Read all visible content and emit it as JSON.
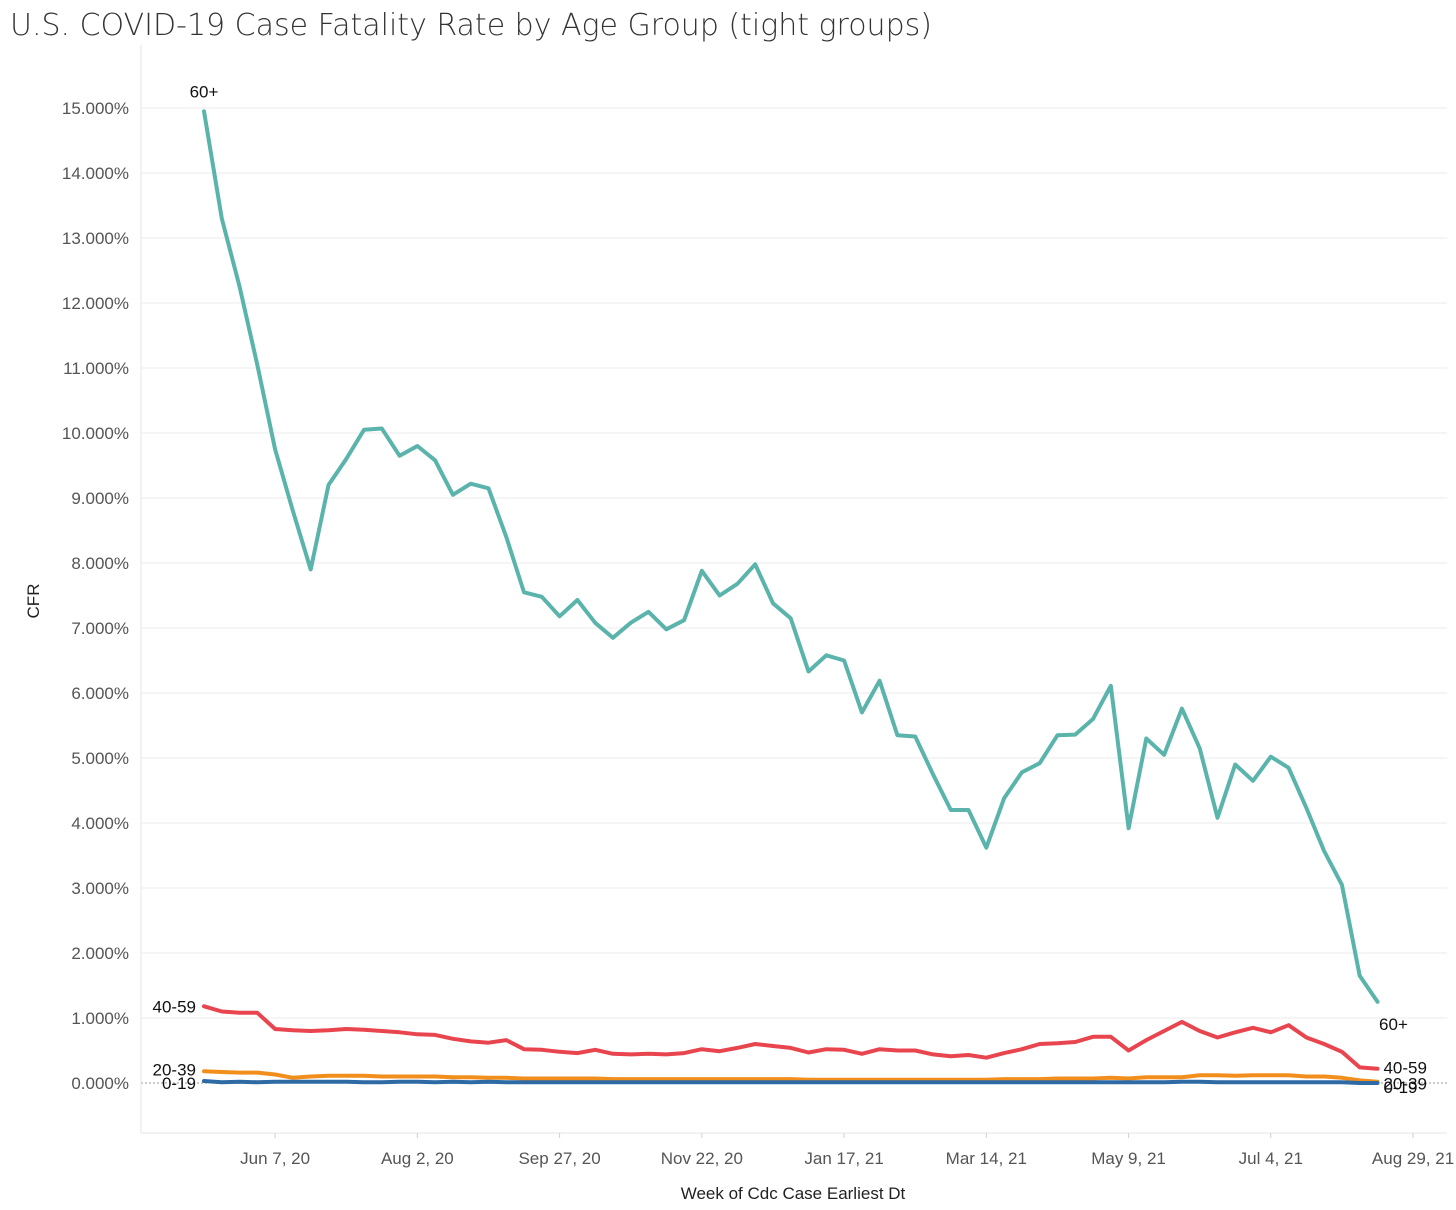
{
  "chart_data": {
    "type": "line",
    "title": "U.S. COVID-19 Case Fatality Rate by Age Group (tight groups)",
    "xlabel": "Week of Cdc Case Earliest Dt",
    "ylabel": "CFR",
    "ylim": [
      -0.007,
      0.0155
    ],
    "yticks": [
      0,
      0.01,
      0.02,
      0.03,
      0.04,
      0.05,
      0.06,
      0.07,
      0.08,
      0.09,
      0.1,
      0.11,
      0.12,
      0.13,
      0.14,
      0.15
    ],
    "ytick_labels": [
      "0.000%",
      "1.000%",
      "2.000%",
      "3.000%",
      "4.000%",
      "5.000%",
      "6.000%",
      "7.000%",
      "8.000%",
      "9.000%",
      "10.000%",
      "11.000%",
      "12.000%",
      "13.000%",
      "14.000%",
      "15.000%"
    ],
    "xlim": [
      -3.5,
      70
    ],
    "xticks": [
      4,
      12,
      20,
      28,
      36,
      44,
      52,
      60,
      68
    ],
    "xtick_labels": [
      "Jun 7, 20",
      "Aug 2, 20",
      "Sep 27, 20",
      "Nov 22, 20",
      "Jan 17, 21",
      "Mar 14, 21",
      "May 9, 21",
      "Jul 4, 21",
      "Aug 29, 21"
    ],
    "grid": true,
    "series": [
      {
        "name": "60+",
        "color": "#5ab4ac",
        "start_label": "60+",
        "end_label": "60+",
        "values": [
          0.1495,
          0.133,
          0.1225,
          0.1105,
          0.0975,
          0.088,
          0.079,
          0.092,
          0.096,
          0.1005,
          0.1007,
          0.0965,
          0.098,
          0.0958,
          0.0905,
          0.0922,
          0.0915,
          0.084,
          0.0755,
          0.0748,
          0.0718,
          0.0743,
          0.0708,
          0.0685,
          0.0708,
          0.0725,
          0.0698,
          0.0712,
          0.0788,
          0.075,
          0.0768,
          0.0798,
          0.0738,
          0.0715,
          0.0633,
          0.0658,
          0.065,
          0.057,
          0.0619,
          0.0535,
          0.0533,
          0.0475,
          0.042,
          0.042,
          0.0362,
          0.0438,
          0.0478,
          0.0492,
          0.0535,
          0.0536,
          0.056,
          0.0611,
          0.0392,
          0.053,
          0.0505,
          0.0576,
          0.0515,
          0.0408,
          0.049,
          0.0465,
          0.0502,
          0.0485,
          0.0423,
          0.0357,
          0.0305,
          0.0165,
          0.0125
        ]
      },
      {
        "name": "40-59",
        "color": "#e8454f",
        "start_label": "40-59",
        "end_label": "40-59",
        "values": [
          0.0118,
          0.011,
          0.0108,
          0.0108,
          0.0083,
          0.0081,
          0.008,
          0.0081,
          0.0083,
          0.0082,
          0.008,
          0.0078,
          0.0075,
          0.0074,
          0.0068,
          0.0064,
          0.0062,
          0.0066,
          0.0052,
          0.0051,
          0.0048,
          0.0046,
          0.0051,
          0.0045,
          0.0044,
          0.0045,
          0.0044,
          0.0046,
          0.0052,
          0.0049,
          0.0054,
          0.006,
          0.0057,
          0.0054,
          0.0047,
          0.0052,
          0.0051,
          0.0045,
          0.0052,
          0.005,
          0.005,
          0.0044,
          0.0041,
          0.0043,
          0.0039,
          0.0046,
          0.0052,
          0.006,
          0.0061,
          0.0063,
          0.0071,
          0.0071,
          0.005,
          0.0066,
          0.008,
          0.0094,
          0.008,
          0.007,
          0.0078,
          0.0085,
          0.0078,
          0.0089,
          0.007,
          0.006,
          0.0048,
          0.0024,
          0.0022
        ]
      },
      {
        "name": "20-39",
        "color": "#f28e1c",
        "start_label": "20-39",
        "end_label": "20-39",
        "values": [
          0.0018,
          0.0017,
          0.0016,
          0.0016,
          0.0013,
          0.0008,
          0.001,
          0.0011,
          0.0011,
          0.0011,
          0.001,
          0.001,
          0.001,
          0.001,
          0.0009,
          0.0009,
          0.0008,
          0.0008,
          0.0007,
          0.0007,
          0.0007,
          0.0007,
          0.0007,
          0.0006,
          0.0006,
          0.0006,
          0.0006,
          0.0006,
          0.0006,
          0.0006,
          0.0006,
          0.0006,
          0.0006,
          0.0006,
          0.0005,
          0.0005,
          0.0005,
          0.0005,
          0.0005,
          0.0005,
          0.0005,
          0.0005,
          0.0005,
          0.0005,
          0.0005,
          0.0006,
          0.0006,
          0.0006,
          0.0007,
          0.0007,
          0.0007,
          0.0008,
          0.0007,
          0.0009,
          0.0009,
          0.0009,
          0.0012,
          0.0012,
          0.0011,
          0.0012,
          0.0012,
          0.0012,
          0.001,
          0.001,
          0.0008,
          0.0004,
          0.0002
        ]
      },
      {
        "name": "0-19",
        "color": "#2e6aa4",
        "start_label": "0-19",
        "end_label": "0-19",
        "values": [
          0.0003,
          0.0001,
          0.0002,
          0.0001,
          0.0002,
          0.0002,
          0.0002,
          0.0002,
          0.0002,
          0.0001,
          0.0001,
          0.0002,
          0.0002,
          0.0001,
          0.0002,
          0.0001,
          0.0002,
          0.0001,
          0.0001,
          0.0001,
          0.0001,
          0.0001,
          0.0001,
          0.0001,
          0.0001,
          0.0001,
          0.0001,
          0.0001,
          0.0001,
          0.0001,
          0.0001,
          0.0001,
          0.0001,
          0.0001,
          0.0001,
          0.0001,
          0.0001,
          0.0001,
          0.0001,
          0.0001,
          0.0001,
          0.0001,
          0.0001,
          0.0001,
          0.0001,
          0.0001,
          0.0001,
          0.0001,
          0.0001,
          0.0001,
          0.0001,
          0.0001,
          0.0001,
          0.0001,
          0.0001,
          0.0002,
          0.0002,
          0.0001,
          0.0001,
          0.0001,
          0.0001,
          0.0001,
          0.0001,
          0.0001,
          0.0001,
          0.0,
          0.0
        ]
      }
    ]
  }
}
